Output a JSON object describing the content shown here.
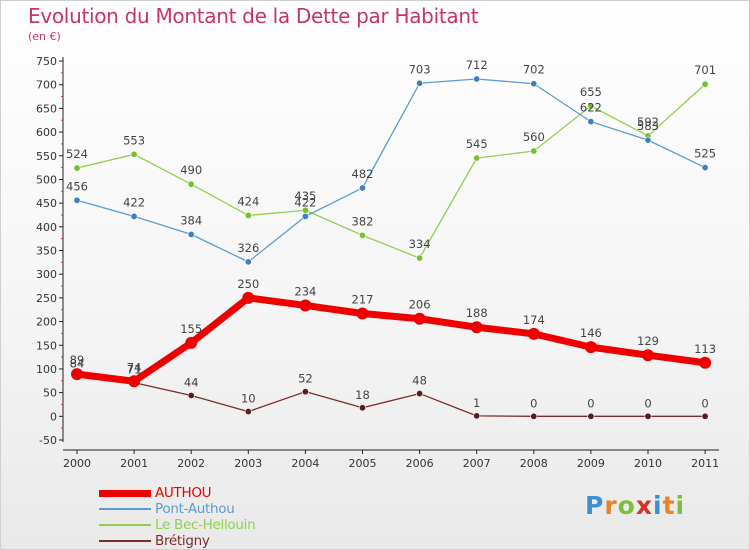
{
  "header": {
    "title": "Evolution du Montant de la Dette par Habitant",
    "subtitle": "(en €)"
  },
  "colors": {
    "title": "#c8336a",
    "AUTHOU": "#ee0000",
    "Pont-Authou": "#5b9bd5",
    "Le Bec-Hellouin": "#8fd14f",
    "Brétigny": "#7b2b2b"
  },
  "logo": {
    "text": "Proxiti",
    "letter_colors": [
      "#3c8fd3",
      "#e98325",
      "#7bbf3c",
      "#d6332a",
      "#3c8fd3",
      "#e98325",
      "#7bbf3c"
    ]
  },
  "chart_data": {
    "type": "line",
    "title": "Evolution du Montant de la Dette par Habitant",
    "subtitle": "(en €)",
    "xlabel": "",
    "ylabel": "",
    "x": [
      "2000",
      "2001",
      "2002",
      "2003",
      "2004",
      "2005",
      "2006",
      "2007",
      "2008",
      "2009",
      "2010",
      "2011"
    ],
    "ylim": [
      -50,
      750
    ],
    "yticks": [
      -50,
      0,
      50,
      100,
      150,
      200,
      250,
      300,
      350,
      400,
      450,
      500,
      550,
      600,
      650,
      700,
      750
    ],
    "grid": false,
    "legend_position": "bottom-left",
    "series": [
      {
        "name": "AUTHOU",
        "values": [
          89,
          74,
          155,
          250,
          234,
          217,
          206,
          188,
          174,
          146,
          129,
          113
        ],
        "labels": [
          "89",
          "74",
          "155",
          "250",
          "234",
          "217",
          "206",
          "188",
          "174",
          "146",
          "129",
          "113"
        ]
      },
      {
        "name": "Pont-Authou",
        "values": [
          456,
          422,
          384,
          326,
          422,
          482,
          703,
          712,
          702,
          622,
          583,
          525
        ],
        "labels": [
          "456",
          "422",
          "384",
          "326",
          "422",
          "482",
          "703",
          "712",
          "702",
          "622",
          "583",
          "525"
        ]
      },
      {
        "name": "Le Bec-Hellouin",
        "values": [
          524,
          553,
          490,
          424,
          435,
          382,
          334,
          545,
          560,
          655,
          592,
          701
        ],
        "labels": [
          "524",
          "553",
          "490",
          "424",
          "435",
          "382",
          "334",
          "545",
          "560",
          "655",
          "592",
          "701"
        ]
      },
      {
        "name": "Brétigny",
        "values": [
          84,
          71,
          44,
          10,
          52,
          18,
          48,
          1,
          0,
          0,
          0,
          0
        ],
        "labels": [
          "84",
          "71",
          "44",
          "10",
          "52",
          "18",
          "48",
          "1",
          "0",
          "0",
          "0",
          "0"
        ]
      }
    ]
  }
}
